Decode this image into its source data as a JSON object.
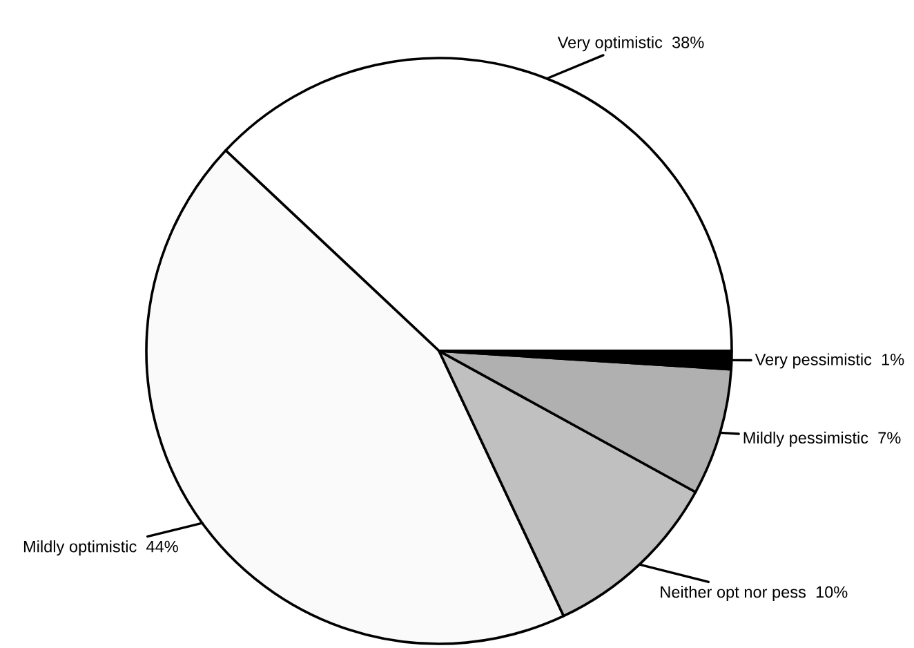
{
  "chart_data": {
    "type": "pie",
    "categories": [
      "Very optimistic",
      "Mildly optimistic",
      "Neither opt nor pess",
      "Mildly pessimistic",
      "Very pessimistic"
    ],
    "values": [
      38,
      44,
      10,
      7,
      1
    ],
    "value_labels": [
      "38%",
      "44%",
      "10%",
      "7%",
      "1%"
    ],
    "colors": [
      "#ffffff",
      "#fafafa",
      "#c0c0c0",
      "#b0b0b0",
      "#000000"
    ]
  }
}
